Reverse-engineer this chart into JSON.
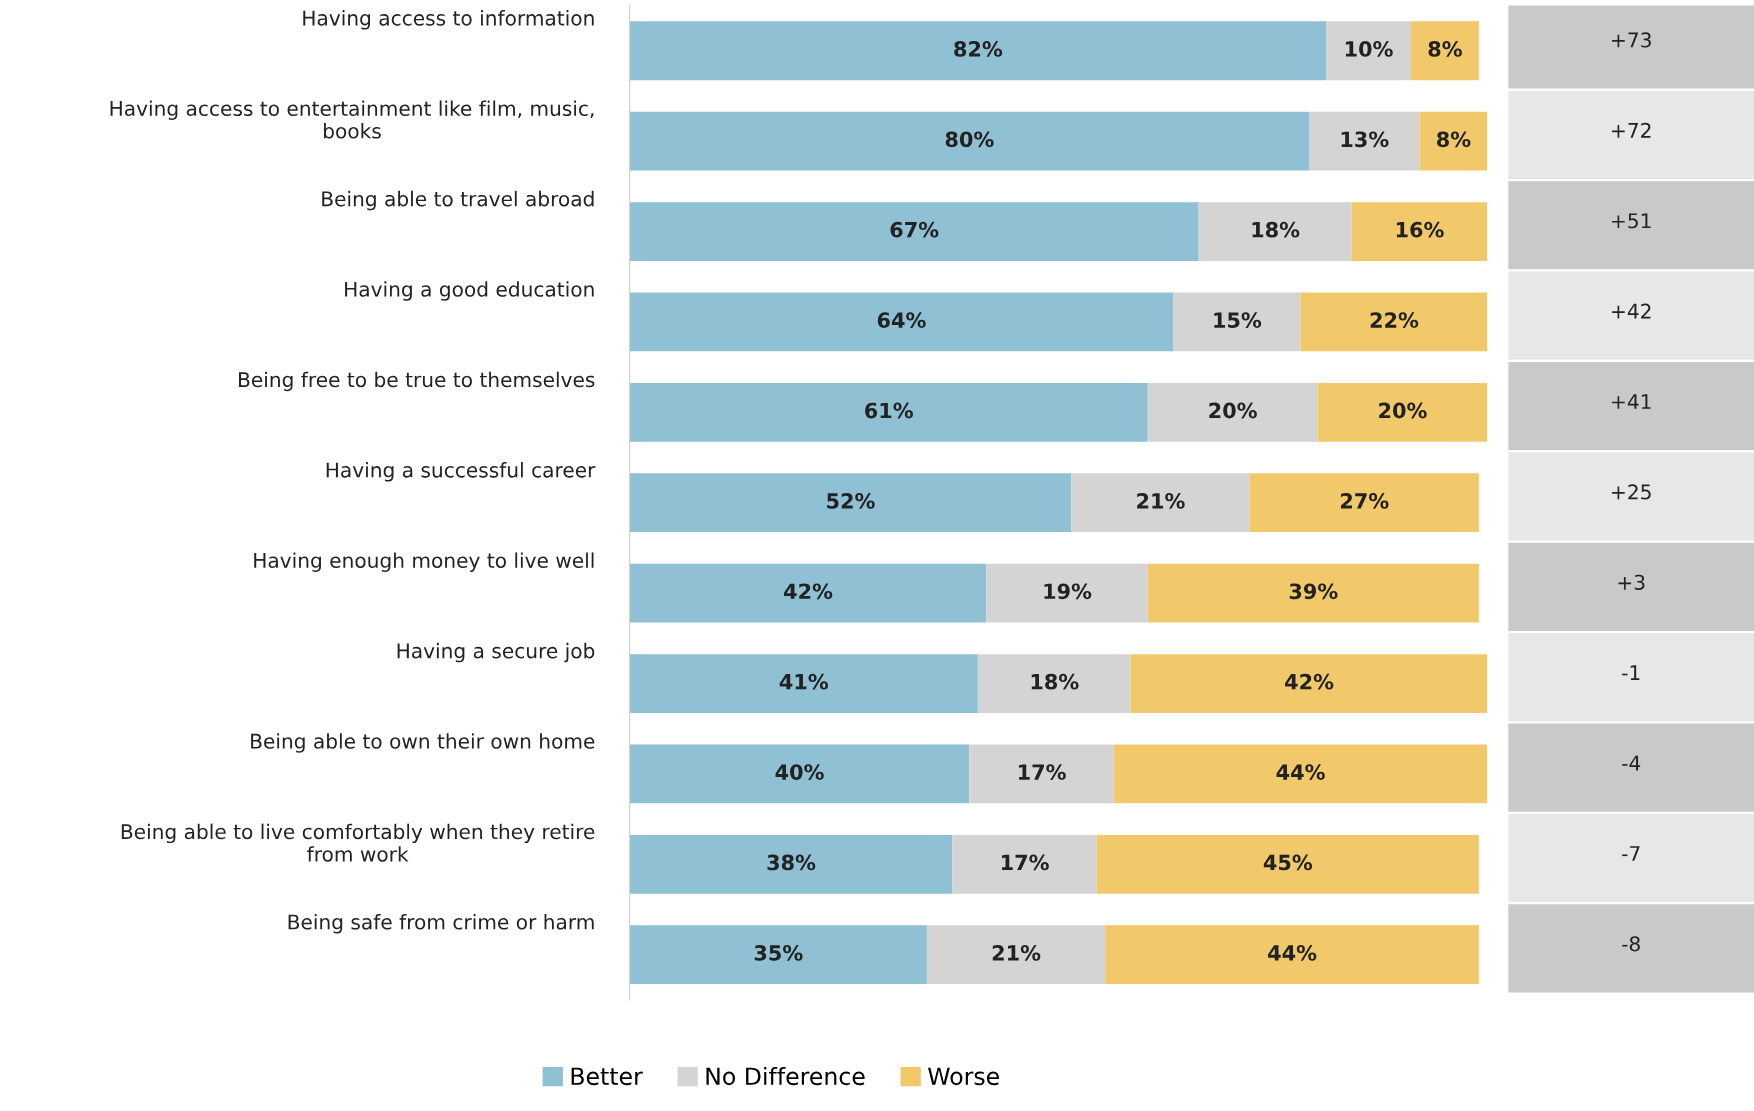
{
  "chart_data": {
    "type": "bar",
    "orientation": "horizontal",
    "stacked": true,
    "legend": "bottom",
    "xlim": [
      0,
      101
    ],
    "categories": [
      "Having access to information",
      "Having access to entertainment like film, music,\nbooks",
      "Being able to travel abroad",
      "Having a good education",
      "Being free to be true to themselves",
      "Having a successful career",
      "Having enough money to live well",
      "Having a secure job",
      "Being able to own their own home",
      "Being able to live comfortably when they retire\nfrom work",
      "Being safe from crime or harm"
    ],
    "series": [
      {
        "name": "Better",
        "color": "#8fc0d4",
        "values": [
          82,
          80,
          67,
          64,
          61,
          52,
          42,
          41,
          40,
          38,
          35
        ],
        "value_labels": [
          "82%",
          "80%",
          "67%",
          "64%",
          "61%",
          "52%",
          "42%",
          "41%",
          "40%",
          "38%",
          "35%"
        ]
      },
      {
        "name": "No Difference",
        "color": "#d4d4d4",
        "values": [
          10,
          13,
          18,
          15,
          20,
          21,
          19,
          18,
          17,
          17,
          21
        ],
        "value_labels": [
          "10%",
          "13%",
          "18%",
          "15%",
          "20%",
          "21%",
          "19%",
          "18%",
          "17%",
          "17%",
          "21%"
        ]
      },
      {
        "name": "Worse",
        "color": "#f2c96a",
        "values": [
          8,
          8,
          16,
          22,
          20,
          27,
          39,
          42,
          44,
          45,
          44
        ],
        "value_labels": [
          "8%",
          "8%",
          "16%",
          "22%",
          "20%",
          "27%",
          "39%",
          "42%",
          "44%",
          "45%",
          "44%"
        ]
      }
    ],
    "annotations": [
      "+73",
      "+72",
      "+51",
      "+42",
      "+41",
      "+25",
      "+3",
      "-1",
      "-4",
      "-7",
      "-8"
    ]
  }
}
